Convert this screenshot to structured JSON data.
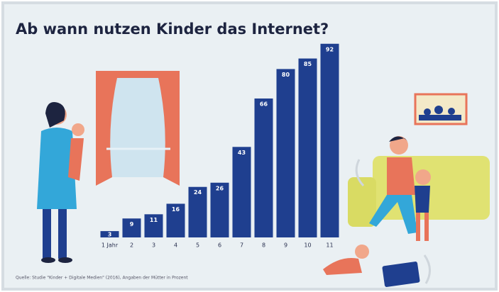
{
  "chart_data": {
    "type": "bar",
    "title": "Ab wann nutzen Kinder das Internet?",
    "source": "Quelle: Studie \"Kinder + Digitale Medien\" (2016), Angaben der Mütter in Prozent",
    "categories": [
      "1 Jahr",
      "2",
      "3",
      "4",
      "5",
      "6",
      "7",
      "8",
      "9",
      "10",
      "11"
    ],
    "values": [
      3,
      9,
      11,
      16,
      24,
      26,
      43,
      66,
      80,
      85,
      92
    ],
    "color": "#1f3f8f",
    "ylim": [
      0,
      100
    ]
  }
}
